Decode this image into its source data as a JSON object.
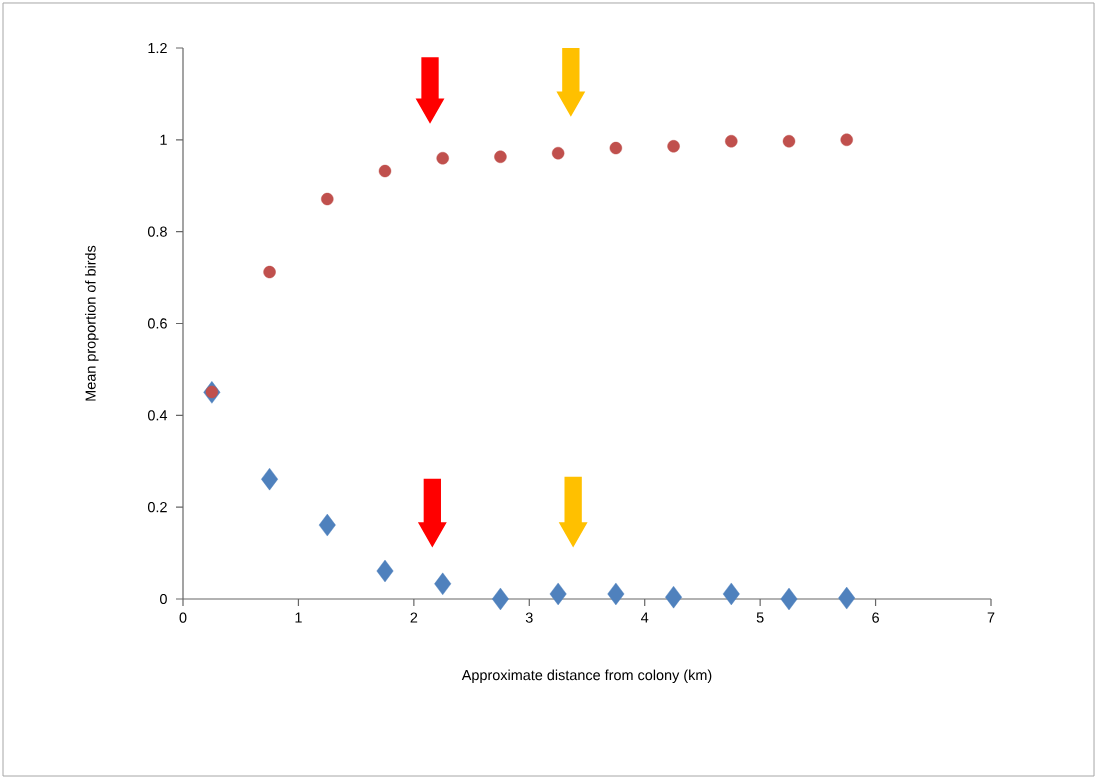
{
  "chart_data": {
    "type": "scatter",
    "xlabel": "Approximate distance from colony (km)",
    "ylabel": "Mean proportion of birds",
    "xlim": [
      0,
      7
    ],
    "xticks": [
      0,
      1,
      2,
      3,
      4,
      5,
      6,
      7
    ],
    "ylim": [
      0,
      1.2
    ],
    "yticks": [
      0,
      0.2,
      0.4,
      0.6,
      0.8,
      1,
      1.2
    ],
    "grid": false,
    "legend": false,
    "series": [
      {
        "color": "#4f81bd",
        "marker": "diamond",
        "x": [
          0.25,
          0.75,
          1.25,
          1.75,
          2.25,
          2.75,
          3.25,
          3.75,
          4.25,
          4.75,
          5.25,
          5.75
        ],
        "values": [
          0.45,
          0.261,
          0.161,
          0.061,
          0.033,
          0,
          0.011,
          0.011,
          0.004,
          0.011,
          0,
          0.002
        ]
      },
      {
        "color": "#c0504d",
        "marker": "circle",
        "x": [
          0.25,
          0.75,
          1.25,
          1.75,
          2.25,
          2.75,
          3.25,
          3.75,
          4.25,
          4.75,
          5.25,
          5.75
        ],
        "values": [
          0.451,
          0.712,
          0.871,
          0.932,
          0.96,
          0.963,
          0.971,
          0.982,
          0.986,
          0.997,
          0.997,
          1.0
        ]
      }
    ]
  }
}
